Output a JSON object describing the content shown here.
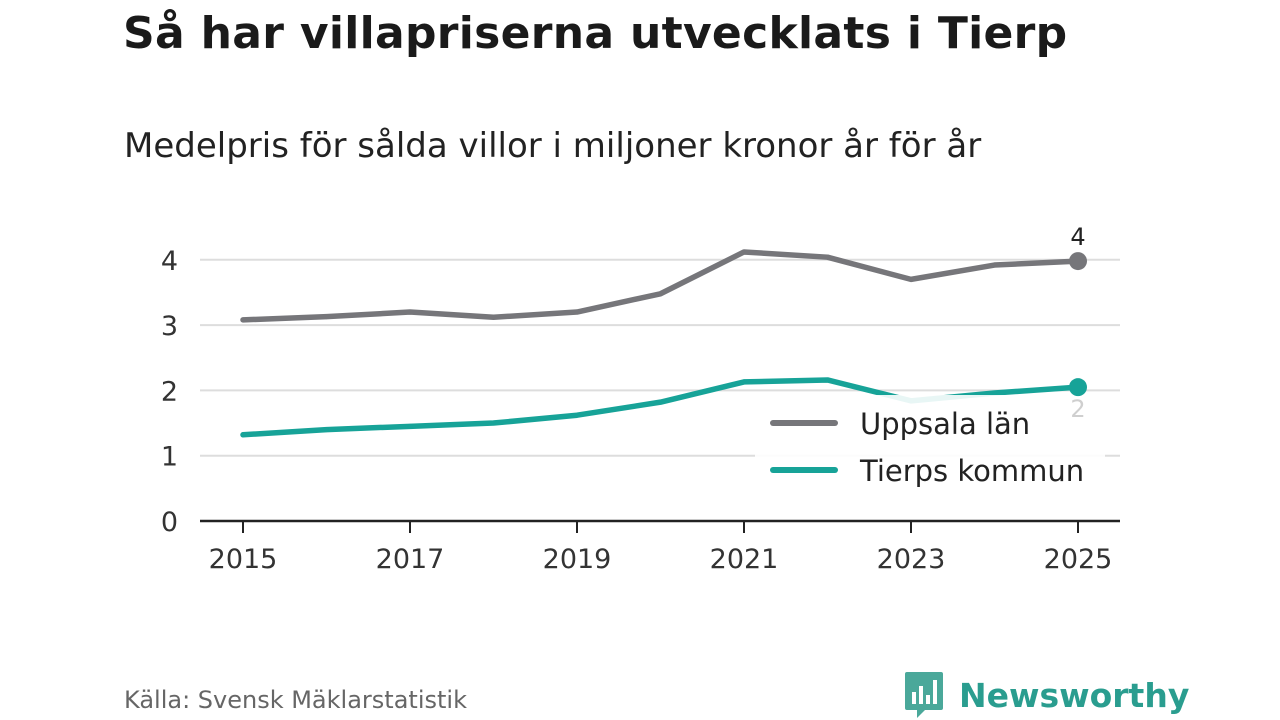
{
  "header": {
    "title": "Så har villapriserna utvecklats i Tierp",
    "subtitle": "Medelpris för sålda villor i miljoner kronor år för år"
  },
  "footer": {
    "source": "Källa: Svensk Mäklarstatistik",
    "brand": "Newsworthy"
  },
  "colors": {
    "uppsala": "#76767a",
    "tierp": "#17a398",
    "grid": "#dddddd",
    "axis": "#222222",
    "brand": "#2a9d8f"
  },
  "chart_data": {
    "type": "line",
    "x": [
      2015,
      2016,
      2017,
      2018,
      2019,
      2020,
      2021,
      2022,
      2023,
      2024,
      2025
    ],
    "xticks": [
      "2015",
      "2017",
      "2019",
      "2021",
      "2023",
      "2025"
    ],
    "yticks": [
      "0",
      "1",
      "2",
      "3",
      "4"
    ],
    "ylim": [
      0,
      4.5
    ],
    "grid": true,
    "legend_position": "lower-right",
    "series": [
      {
        "name": "Uppsala län",
        "key": "uppsala",
        "values": [
          3.08,
          3.13,
          3.2,
          3.12,
          3.2,
          3.48,
          4.12,
          4.04,
          3.7,
          3.92,
          3.98
        ],
        "end_label": "4"
      },
      {
        "name": "Tierps kommun",
        "key": "tierp",
        "values": [
          1.32,
          1.4,
          1.45,
          1.5,
          1.62,
          1.82,
          2.13,
          2.16,
          1.84,
          1.96,
          2.05
        ],
        "end_label": "2"
      }
    ]
  }
}
